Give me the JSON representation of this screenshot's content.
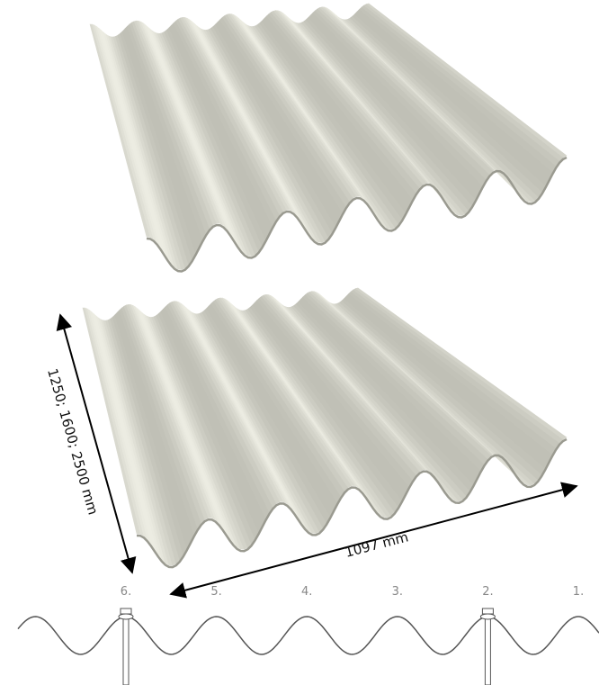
{
  "dimensions": {
    "length": "1250; 1600; 2500 mm",
    "width": "1097 mm"
  },
  "profile": {
    "crest_labels": [
      "6.",
      "5.",
      "4.",
      "3.",
      "2.",
      "1."
    ]
  }
}
